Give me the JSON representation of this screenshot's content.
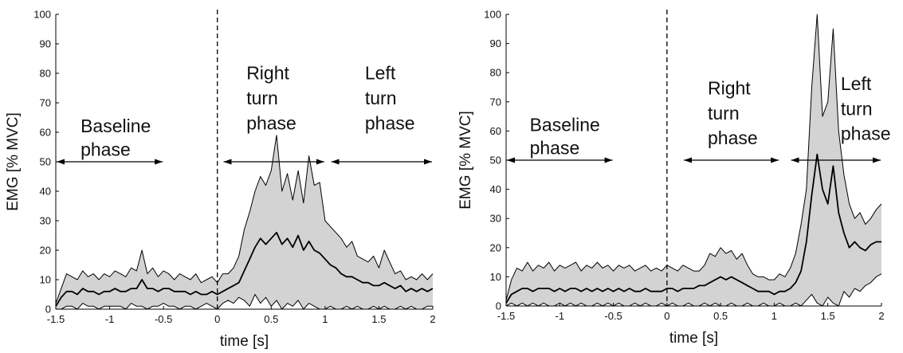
{
  "chart_data": [
    {
      "type": "area",
      "title": "",
      "xlabel": "time [s]",
      "ylabel": "EMG [% MVC]",
      "xlim": [
        -1.5,
        2
      ],
      "ylim": [
        0,
        100
      ],
      "xticks": [
        "-1.5",
        "-1",
        "-0.5",
        "0",
        "0.5",
        "1",
        "1.5",
        "2"
      ],
      "yticks": [
        "0",
        "10",
        "20",
        "30",
        "40",
        "50",
        "60",
        "70",
        "80",
        "90",
        "100"
      ],
      "grid": false,
      "event_line_x": 0,
      "phases": [
        {
          "label": [
            "Baseline",
            "phase"
          ],
          "x_start": -1.5,
          "x_end": -0.5,
          "y": 50,
          "label_x": -1.27,
          "label_y": [
            60,
            52
          ]
        },
        {
          "label": [
            "Right",
            "turn",
            "phase"
          ],
          "x_start": 0.05,
          "x_end": 1.0,
          "y": 50,
          "label_x": 0.27,
          "label_y": [
            78,
            69.5,
            61
          ]
        },
        {
          "label": [
            "Left",
            "turn",
            "phase"
          ],
          "x_start": 1.05,
          "x_end": 2.0,
          "y": 50,
          "label_x": 1.37,
          "label_y": [
            78,
            69.5,
            61
          ]
        }
      ],
      "series": [
        {
          "role": "upper-band",
          "x": [
            -1.5,
            -1.45,
            -1.4,
            -1.35,
            -1.3,
            -1.25,
            -1.2,
            -1.15,
            -1.1,
            -1.05,
            -1.0,
            -0.95,
            -0.9,
            -0.85,
            -0.8,
            -0.75,
            -0.7,
            -0.65,
            -0.6,
            -0.55,
            -0.5,
            -0.45,
            -0.4,
            -0.35,
            -0.3,
            -0.25,
            -0.2,
            -0.15,
            -0.1,
            -0.05,
            0.0,
            0.05,
            0.1,
            0.15,
            0.2,
            0.25,
            0.3,
            0.35,
            0.4,
            0.45,
            0.5,
            0.55,
            0.6,
            0.65,
            0.7,
            0.75,
            0.8,
            0.85,
            0.9,
            0.95,
            1.0,
            1.05,
            1.1,
            1.15,
            1.2,
            1.25,
            1.3,
            1.35,
            1.4,
            1.45,
            1.5,
            1.55,
            1.6,
            1.65,
            1.7,
            1.75,
            1.8,
            1.85,
            1.9,
            1.95,
            2.0
          ],
          "y": [
            2,
            7,
            12,
            11,
            10,
            13,
            11,
            12,
            10,
            12,
            11,
            13,
            12,
            11,
            14,
            13,
            20,
            12,
            14,
            11,
            13,
            12,
            10,
            12,
            11,
            10,
            12,
            9,
            10,
            11,
            9,
            12,
            12,
            14,
            18,
            27,
            33,
            40,
            45,
            42,
            47,
            59,
            40,
            46,
            37,
            47,
            36,
            52,
            42,
            43,
            30,
            28,
            26,
            24,
            21,
            23,
            18,
            17,
            16,
            18,
            14,
            20,
            16,
            12,
            13,
            10,
            11,
            10,
            12,
            10,
            12
          ]
        },
        {
          "role": "mean",
          "x": [
            -1.5,
            -1.45,
            -1.4,
            -1.35,
            -1.3,
            -1.25,
            -1.2,
            -1.15,
            -1.1,
            -1.05,
            -1.0,
            -0.95,
            -0.9,
            -0.85,
            -0.8,
            -0.75,
            -0.7,
            -0.65,
            -0.6,
            -0.55,
            -0.5,
            -0.45,
            -0.4,
            -0.35,
            -0.3,
            -0.25,
            -0.2,
            -0.15,
            -0.1,
            -0.05,
            0.0,
            0.05,
            0.1,
            0.15,
            0.2,
            0.25,
            0.3,
            0.35,
            0.4,
            0.45,
            0.5,
            0.55,
            0.6,
            0.65,
            0.7,
            0.75,
            0.8,
            0.85,
            0.9,
            0.95,
            1.0,
            1.05,
            1.1,
            1.15,
            1.2,
            1.25,
            1.3,
            1.35,
            1.4,
            1.45,
            1.5,
            1.55,
            1.6,
            1.65,
            1.7,
            1.75,
            1.8,
            1.85,
            1.9,
            1.95,
            2.0
          ],
          "y": [
            1,
            4,
            6,
            6,
            5,
            7,
            6,
            6,
            5,
            6,
            6,
            7,
            6,
            6,
            7,
            7,
            10,
            7,
            7,
            6,
            7,
            7,
            6,
            6,
            6,
            5,
            6,
            5,
            5,
            6,
            5,
            6,
            7,
            8,
            9,
            13,
            17,
            21,
            24,
            22,
            24,
            26,
            22,
            24,
            21,
            25,
            20,
            23,
            20,
            19,
            17,
            15,
            14,
            12,
            11,
            11,
            10,
            9,
            9,
            8,
            8,
            9,
            8,
            7,
            8,
            6,
            7,
            6,
            7,
            6,
            7
          ]
        },
        {
          "role": "lower-band",
          "x": [
            -1.5,
            -1.45,
            -1.4,
            -1.35,
            -1.3,
            -1.25,
            -1.2,
            -1.15,
            -1.1,
            -1.05,
            -1.0,
            -0.95,
            -0.9,
            -0.85,
            -0.8,
            -0.75,
            -0.7,
            -0.65,
            -0.6,
            -0.55,
            -0.5,
            -0.45,
            -0.4,
            -0.35,
            -0.3,
            -0.25,
            -0.2,
            -0.15,
            -0.1,
            -0.05,
            0.0,
            0.05,
            0.1,
            0.15,
            0.2,
            0.25,
            0.3,
            0.35,
            0.4,
            0.45,
            0.5,
            0.55,
            0.6,
            0.65,
            0.7,
            0.75,
            0.8,
            0.85,
            0.9,
            0.95,
            1.0,
            1.05,
            1.1,
            1.15,
            1.2,
            1.25,
            1.3,
            1.35,
            1.4,
            1.45,
            1.5,
            1.55,
            1.6,
            1.65,
            1.7,
            1.75,
            1.8,
            1.85,
            1.9,
            1.95,
            2.0
          ],
          "y": [
            0,
            0,
            1,
            1,
            0,
            2,
            1,
            1,
            0,
            1,
            1,
            1,
            1,
            0,
            2,
            1,
            1,
            0,
            1,
            1,
            2,
            1,
            1,
            0,
            1,
            1,
            0,
            1,
            2,
            1,
            0,
            2,
            3,
            2,
            4,
            3,
            1,
            5,
            2,
            4,
            1,
            3,
            0,
            2,
            1,
            3,
            0,
            2,
            1,
            0,
            0,
            1,
            0,
            0,
            1,
            0,
            1,
            0,
            0,
            1,
            0,
            1,
            0,
            0,
            1,
            0,
            1,
            0,
            0,
            1,
            1
          ]
        }
      ]
    },
    {
      "type": "area",
      "title": "",
      "xlabel": "time [s]",
      "ylabel": "EMG [% MVC]",
      "xlim": [
        -1.5,
        2
      ],
      "ylim": [
        0,
        100
      ],
      "xticks": [
        "-1.5",
        "-1",
        "-0.5",
        "0",
        "0.5",
        "1",
        "1.5",
        "2"
      ],
      "yticks": [
        "0",
        "10",
        "20",
        "30",
        "40",
        "50",
        "60",
        "70",
        "80",
        "90",
        "100"
      ],
      "grid": false,
      "event_line_x": 0,
      "phases": [
        {
          "label": [
            "Baseline",
            "phase"
          ],
          "x_start": -1.5,
          "x_end": -0.5,
          "y": 50,
          "label_x": -1.28,
          "label_y": [
            60,
            52
          ]
        },
        {
          "label": [
            "Right",
            "turn",
            "phase"
          ],
          "x_start": 0.15,
          "x_end": 1.05,
          "y": 50,
          "label_x": 0.38,
          "label_y": [
            72.5,
            64,
            55.5
          ]
        },
        {
          "label": [
            "Left",
            "turn",
            "phase"
          ],
          "x_start": 1.15,
          "x_end": 2.0,
          "y": 50,
          "label_x": 1.62,
          "label_y": [
            74,
            65.5,
            57
          ]
        }
      ],
      "series": [
        {
          "role": "upper-band",
          "x": [
            -1.5,
            -1.45,
            -1.4,
            -1.35,
            -1.3,
            -1.25,
            -1.2,
            -1.15,
            -1.1,
            -1.05,
            -1.0,
            -0.95,
            -0.9,
            -0.85,
            -0.8,
            -0.75,
            -0.7,
            -0.65,
            -0.6,
            -0.55,
            -0.5,
            -0.45,
            -0.4,
            -0.35,
            -0.3,
            -0.25,
            -0.2,
            -0.15,
            -0.1,
            -0.05,
            0.0,
            0.05,
            0.1,
            0.15,
            0.2,
            0.25,
            0.3,
            0.35,
            0.4,
            0.45,
            0.5,
            0.55,
            0.6,
            0.65,
            0.7,
            0.75,
            0.8,
            0.85,
            0.9,
            0.95,
            1.0,
            1.05,
            1.1,
            1.15,
            1.2,
            1.25,
            1.3,
            1.35,
            1.4,
            1.45,
            1.5,
            1.55,
            1.6,
            1.65,
            1.7,
            1.75,
            1.8,
            1.85,
            1.9,
            1.95,
            2.0
          ],
          "y": [
            2,
            9,
            13,
            12,
            15,
            12,
            14,
            13,
            15,
            12,
            14,
            13,
            14,
            15,
            12,
            14,
            13,
            15,
            13,
            14,
            12,
            14,
            13,
            14,
            12,
            13,
            14,
            12,
            13,
            12,
            14,
            13,
            12,
            14,
            13,
            12,
            12,
            14,
            18,
            17,
            20,
            18,
            19,
            16,
            18,
            14,
            11,
            10,
            10,
            9,
            9,
            11,
            10,
            13,
            18,
            28,
            40,
            75,
            100,
            65,
            70,
            95,
            60,
            45,
            35,
            30,
            32,
            28,
            30,
            33,
            35
          ]
        },
        {
          "role": "mean",
          "x": [
            -1.5,
            -1.45,
            -1.4,
            -1.35,
            -1.3,
            -1.25,
            -1.2,
            -1.15,
            -1.1,
            -1.05,
            -1.0,
            -0.95,
            -0.9,
            -0.85,
            -0.8,
            -0.75,
            -0.7,
            -0.65,
            -0.6,
            -0.55,
            -0.5,
            -0.45,
            -0.4,
            -0.35,
            -0.3,
            -0.25,
            -0.2,
            -0.15,
            -0.1,
            -0.05,
            0.0,
            0.05,
            0.1,
            0.15,
            0.2,
            0.25,
            0.3,
            0.35,
            0.4,
            0.45,
            0.5,
            0.55,
            0.6,
            0.65,
            0.7,
            0.75,
            0.8,
            0.85,
            0.9,
            0.95,
            1.0,
            1.05,
            1.1,
            1.15,
            1.2,
            1.25,
            1.3,
            1.35,
            1.4,
            1.45,
            1.5,
            1.55,
            1.6,
            1.65,
            1.7,
            1.75,
            1.8,
            1.85,
            1.9,
            1.95,
            2.0
          ],
          "y": [
            1,
            4,
            5,
            6,
            6,
            5,
            6,
            6,
            6,
            5,
            6,
            5,
            6,
            6,
            5,
            6,
            5,
            6,
            5,
            6,
            5,
            6,
            5,
            6,
            5,
            5,
            6,
            5,
            5,
            5,
            6,
            6,
            5,
            6,
            6,
            6,
            7,
            7,
            8,
            9,
            10,
            9,
            10,
            9,
            8,
            7,
            6,
            5,
            5,
            5,
            4,
            5,
            5,
            6,
            8,
            12,
            22,
            38,
            52,
            40,
            35,
            48,
            32,
            25,
            20,
            22,
            20,
            19,
            21,
            22,
            22
          ]
        },
        {
          "role": "lower-band",
          "x": [
            -1.5,
            -1.45,
            -1.4,
            -1.35,
            -1.3,
            -1.25,
            -1.2,
            -1.15,
            -1.1,
            -1.05,
            -1.0,
            -0.95,
            -0.9,
            -0.85,
            -0.8,
            -0.75,
            -0.7,
            -0.65,
            -0.6,
            -0.55,
            -0.5,
            -0.45,
            -0.4,
            -0.35,
            -0.3,
            -0.25,
            -0.2,
            -0.15,
            -0.1,
            -0.05,
            0.0,
            0.05,
            0.1,
            0.15,
            0.2,
            0.25,
            0.3,
            0.35,
            0.4,
            0.45,
            0.5,
            0.55,
            0.6,
            0.65,
            0.7,
            0.75,
            0.8,
            0.85,
            0.9,
            0.95,
            1.0,
            1.05,
            1.1,
            1.15,
            1.2,
            1.25,
            1.3,
            1.35,
            1.4,
            1.45,
            1.5,
            1.55,
            1.6,
            1.65,
            1.7,
            1.75,
            1.8,
            1.85,
            1.9,
            1.95,
            2.0
          ],
          "y": [
            0,
            1,
            0,
            1,
            0,
            1,
            0,
            1,
            0,
            0,
            1,
            0,
            1,
            0,
            1,
            0,
            0,
            1,
            0,
            1,
            0,
            1,
            0,
            0,
            1,
            0,
            1,
            0,
            0,
            1,
            0,
            1,
            0,
            0,
            1,
            0,
            0,
            1,
            0,
            1,
            0,
            0,
            1,
            0,
            0,
            1,
            0,
            0,
            1,
            0,
            0,
            1,
            0,
            0,
            1,
            0,
            2,
            4,
            1,
            0,
            3,
            1,
            0,
            5,
            3,
            6,
            5,
            7,
            8,
            10,
            11
          ]
        }
      ]
    }
  ]
}
